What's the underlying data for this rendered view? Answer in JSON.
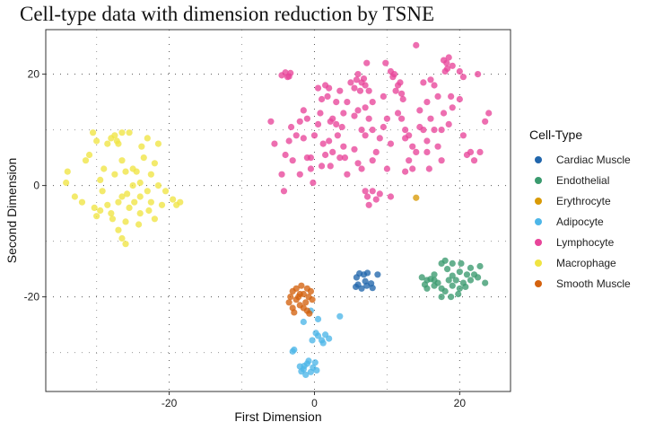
{
  "chart_data": {
    "type": "scatter",
    "title": "Cell-type data with dimension reduction by TSNE",
    "xlabel": "First Dimension",
    "ylabel": "Second Dimension",
    "xlim": [
      -37,
      27
    ],
    "ylim": [
      -37,
      28
    ],
    "xticks": [
      -20,
      0,
      20
    ],
    "yticks": [
      -20,
      0,
      20
    ],
    "grid": true,
    "legend_position": "right",
    "legend_title": "Cell-Type",
    "series": [
      {
        "name": "Cardiac Muscle",
        "color": "#2166ac",
        "points": [
          [
            5.8,
            -16.5
          ],
          [
            6.2,
            -15.8
          ],
          [
            6.8,
            -16.0
          ],
          [
            7.3,
            -15.7
          ],
          [
            8.7,
            -16.0
          ],
          [
            6.0,
            -17.8
          ],
          [
            6.5,
            -18.5
          ],
          [
            7.2,
            -18.0
          ],
          [
            7.8,
            -17.6
          ],
          [
            8.0,
            -18.4
          ],
          [
            7.0,
            -17.2
          ],
          [
            5.7,
            -18.2
          ]
        ]
      },
      {
        "name": "Endothelial",
        "color": "#3a9a6e",
        "points": [
          [
            14.8,
            -16.5
          ],
          [
            15.5,
            -17.0
          ],
          [
            16.0,
            -16.8
          ],
          [
            16.5,
            -16.0
          ],
          [
            17.0,
            -17.5
          ],
          [
            17.5,
            -14.0
          ],
          [
            18.0,
            -13.5
          ],
          [
            18.3,
            -15.0
          ],
          [
            19.0,
            -16.2
          ],
          [
            19.5,
            -17.0
          ],
          [
            20.0,
            -15.5
          ],
          [
            20.5,
            -17.5
          ],
          [
            21.0,
            -16.0
          ],
          [
            21.5,
            -17.0
          ],
          [
            22.0,
            -16.0
          ],
          [
            22.5,
            -16.5
          ],
          [
            23.5,
            -17.5
          ],
          [
            15.5,
            -18.5
          ],
          [
            16.5,
            -18.0
          ],
          [
            17.5,
            -18.5
          ],
          [
            18.0,
            -19.0
          ],
          [
            19.0,
            -18.0
          ],
          [
            20.0,
            -18.5
          ],
          [
            20.8,
            -18.2
          ],
          [
            19.8,
            -19.5
          ],
          [
            18.8,
            -20.0
          ],
          [
            17.5,
            -20.0
          ],
          [
            16.5,
            -17.0
          ],
          [
            19.0,
            -14.0
          ],
          [
            21.5,
            -14.8
          ],
          [
            22.8,
            -14.5
          ],
          [
            15.2,
            -17.8
          ],
          [
            20.2,
            -14.0
          ],
          [
            18.5,
            -17.0
          ]
        ]
      },
      {
        "name": "Erythrocyte",
        "color": "#d99a06",
        "points": [
          [
            14.0,
            -2.2
          ]
        ]
      },
      {
        "name": "Adipocyte",
        "color": "#4db6e8",
        "points": [
          [
            -0.5,
            -22.5
          ],
          [
            -1.5,
            -24.5
          ],
          [
            0.5,
            -24.0
          ],
          [
            3.5,
            -23.5
          ],
          [
            0.2,
            -26.5
          ],
          [
            0.5,
            -27.0
          ],
          [
            1.0,
            -27.8
          ],
          [
            1.5,
            -26.8
          ],
          [
            2.0,
            -27.5
          ],
          [
            1.2,
            -28.3
          ],
          [
            -0.3,
            -27.8
          ],
          [
            -3.0,
            -29.8
          ],
          [
            -2.8,
            -29.5
          ],
          [
            -2.0,
            -32.5
          ],
          [
            -1.5,
            -33.0
          ],
          [
            -1.0,
            -32.0
          ],
          [
            -0.5,
            -33.5
          ],
          [
            -1.2,
            -34.0
          ],
          [
            -0.2,
            -32.7
          ],
          [
            0.3,
            -33.2
          ],
          [
            -1.8,
            -33.4
          ],
          [
            -0.8,
            -31.5
          ],
          [
            0.1,
            -31.8
          ],
          [
            -1.4,
            -32.4
          ]
        ]
      },
      {
        "name": "Lymphocyte",
        "color": "#e8459a",
        "points": [
          [
            -4.5,
            19.8
          ],
          [
            -4.0,
            20.3
          ],
          [
            -3.7,
            19.5
          ],
          [
            -3.3,
            20.2
          ],
          [
            -3.5,
            19.6
          ],
          [
            -6.0,
            11.5
          ],
          [
            -5.5,
            7.5
          ],
          [
            -4.5,
            2.0
          ],
          [
            -4.2,
            -1.0
          ],
          [
            -4.0,
            5.5
          ],
          [
            -3.0,
            4.5
          ],
          [
            -3.5,
            8.0
          ],
          [
            -3.2,
            10.5
          ],
          [
            -2.5,
            9.0
          ],
          [
            -2.0,
            11.5
          ],
          [
            -1.5,
            8.5
          ],
          [
            -1.0,
            5.0
          ],
          [
            -1.5,
            13.5
          ],
          [
            -1.0,
            12.0
          ],
          [
            -0.5,
            3.0
          ],
          [
            -0.2,
            0.5
          ],
          [
            -0.5,
            5.0
          ],
          [
            0.0,
            9.0
          ],
          [
            0.5,
            11.0
          ],
          [
            0.8,
            13.0
          ],
          [
            0.5,
            17.5
          ],
          [
            1.0,
            15.5
          ],
          [
            1.5,
            18.0
          ],
          [
            1.8,
            16.0
          ],
          [
            2.0,
            17.5
          ],
          [
            2.2,
            11.5
          ],
          [
            2.5,
            12.0
          ],
          [
            3.0,
            11.0
          ],
          [
            3.2,
            9.0
          ],
          [
            3.5,
            17.0
          ],
          [
            2.0,
            8.0
          ],
          [
            2.5,
            6.0
          ],
          [
            2.2,
            3.5
          ],
          [
            1.5,
            5.5
          ],
          [
            1.2,
            7.5
          ],
          [
            3.0,
            15.0
          ],
          [
            3.8,
            10.5
          ],
          [
            4.0,
            7.0
          ],
          [
            4.2,
            5.0
          ],
          [
            4.5,
            2.0
          ],
          [
            4.5,
            15.0
          ],
          [
            5.0,
            18.5
          ],
          [
            5.5,
            17.5
          ],
          [
            5.8,
            19.0
          ],
          [
            6.0,
            20.0
          ],
          [
            6.3,
            17.0
          ],
          [
            6.5,
            18.5
          ],
          [
            6.8,
            19.2
          ],
          [
            7.0,
            18.0
          ],
          [
            7.2,
            22.0
          ],
          [
            7.5,
            17.0
          ],
          [
            7.0,
            14.0
          ],
          [
            6.5,
            10.0
          ],
          [
            7.0,
            9.0
          ],
          [
            7.5,
            12.0
          ],
          [
            5.5,
            6.5
          ],
          [
            6.0,
            4.0
          ],
          [
            6.5,
            3.0
          ],
          [
            7.0,
            -1.0
          ],
          [
            7.3,
            -2.0
          ],
          [
            7.5,
            -3.5
          ],
          [
            8.0,
            -1.0
          ],
          [
            8.5,
            -2.5
          ],
          [
            9.0,
            -1.5
          ],
          [
            8.5,
            6.0
          ],
          [
            9.0,
            8.5
          ],
          [
            8.0,
            10.0
          ],
          [
            9.5,
            10.5
          ],
          [
            10.0,
            12.0
          ],
          [
            10.0,
            3.0
          ],
          [
            10.5,
            -2.0
          ],
          [
            9.8,
            22.0
          ],
          [
            10.5,
            20.5
          ],
          [
            10.8,
            19.5
          ],
          [
            11.0,
            20.0
          ],
          [
            11.5,
            18.0
          ],
          [
            11.2,
            17.0
          ],
          [
            11.8,
            18.5
          ],
          [
            12.0,
            16.5
          ],
          [
            12.2,
            15.5
          ],
          [
            11.5,
            13.0
          ],
          [
            12.0,
            12.0
          ],
          [
            12.5,
            10.0
          ],
          [
            13.0,
            9.0
          ],
          [
            12.5,
            8.5
          ],
          [
            13.5,
            7.0
          ],
          [
            13.0,
            4.5
          ],
          [
            13.5,
            3.0
          ],
          [
            14.0,
            6.0
          ],
          [
            14.0,
            25.2
          ],
          [
            14.5,
            13.5
          ],
          [
            15.0,
            10.0
          ],
          [
            15.5,
            8.0
          ],
          [
            15.5,
            6.0
          ],
          [
            15.8,
            3.0
          ],
          [
            15.5,
            15.0
          ],
          [
            16.0,
            19.0
          ],
          [
            16.5,
            18.0
          ],
          [
            16.0,
            12.0
          ],
          [
            17.0,
            16.0
          ],
          [
            17.0,
            7.0
          ],
          [
            17.5,
            10.0
          ],
          [
            17.8,
            13.0
          ],
          [
            17.5,
            4.5
          ],
          [
            18.0,
            20.5
          ],
          [
            18.3,
            21.0
          ],
          [
            17.8,
            22.5
          ],
          [
            18.2,
            22.0
          ],
          [
            18.5,
            23.0
          ],
          [
            19.0,
            21.5
          ],
          [
            18.8,
            16.0
          ],
          [
            18.5,
            11.0
          ],
          [
            19.0,
            14.0
          ],
          [
            20.0,
            20.5
          ],
          [
            20.5,
            19.5
          ],
          [
            20.5,
            9.0
          ],
          [
            20.0,
            15.5
          ],
          [
            21.0,
            5.5
          ],
          [
            21.5,
            6.0
          ],
          [
            22.0,
            4.5
          ],
          [
            22.5,
            20.0
          ],
          [
            22.8,
            6.0
          ],
          [
            23.5,
            11.5
          ],
          [
            24.0,
            13.0
          ],
          [
            8.0,
            15.0
          ],
          [
            5.5,
            12.5
          ],
          [
            3.5,
            5.0
          ],
          [
            9.5,
            16.0
          ],
          [
            10.5,
            7.5
          ],
          [
            15.0,
            18.5
          ],
          [
            16.5,
            10.0
          ],
          [
            14.5,
            10.5
          ],
          [
            12.5,
            2.5
          ],
          [
            1.0,
            3.5
          ],
          [
            -2.0,
            2.0
          ],
          [
            4.0,
            13.0
          ],
          [
            8.0,
            4.5
          ],
          [
            6.0,
            13.5
          ]
        ]
      },
      {
        "name": "Macrophage",
        "color": "#f0e442",
        "points": [
          [
            -34.0,
            2.5
          ],
          [
            -34.2,
            0.5
          ],
          [
            -33.0,
            -2.0
          ],
          [
            -32.0,
            -3.0
          ],
          [
            -31.5,
            4.5
          ],
          [
            -31.0,
            5.5
          ],
          [
            -30.5,
            9.5
          ],
          [
            -30.0,
            8.0
          ],
          [
            -30.3,
            -4.0
          ],
          [
            -30.0,
            -5.5
          ],
          [
            -29.5,
            -4.5
          ],
          [
            -29.5,
            1.0
          ],
          [
            -29.0,
            3.0
          ],
          [
            -29.2,
            -1.0
          ],
          [
            -28.5,
            7.5
          ],
          [
            -28.0,
            8.5
          ],
          [
            -27.5,
            9.0
          ],
          [
            -27.2,
            8.0
          ],
          [
            -27.0,
            7.5
          ],
          [
            -26.5,
            9.5
          ],
          [
            -26.5,
            -2.0
          ],
          [
            -27.0,
            -3.0
          ],
          [
            -26.0,
            2.5
          ],
          [
            -26.5,
            4.5
          ],
          [
            -27.5,
            2.0
          ],
          [
            -28.0,
            -5.0
          ],
          [
            -27.8,
            -6.0
          ],
          [
            -27.0,
            -8.0
          ],
          [
            -26.5,
            -9.5
          ],
          [
            -26.0,
            -6.5
          ],
          [
            -25.5,
            -4.0
          ],
          [
            -25.8,
            -1.5
          ],
          [
            -25.0,
            0.0
          ],
          [
            -25.0,
            3.0
          ],
          [
            -24.8,
            -3.0
          ],
          [
            -24.5,
            2.5
          ],
          [
            -24.0,
            -2.0
          ],
          [
            -24.0,
            -5.0
          ],
          [
            -24.2,
            -7.0
          ],
          [
            -23.8,
            7.0
          ],
          [
            -23.5,
            5.0
          ],
          [
            -23.0,
            8.5
          ],
          [
            -23.0,
            -1.0
          ],
          [
            -22.8,
            -4.5
          ],
          [
            -22.5,
            -3.0
          ],
          [
            -22.5,
            2.0
          ],
          [
            -22.0,
            4.0
          ],
          [
            -22.0,
            -6.0
          ],
          [
            -21.5,
            0.0
          ],
          [
            -21.5,
            7.5
          ],
          [
            -21.0,
            -3.5
          ],
          [
            -20.5,
            -1.0
          ],
          [
            -19.5,
            -2.5
          ],
          [
            -19.0,
            -3.5
          ],
          [
            -18.5,
            -3.0
          ],
          [
            -25.5,
            9.5
          ],
          [
            -28.5,
            -3.5
          ],
          [
            -24.0,
            0.5
          ],
          [
            -26.0,
            -10.5
          ]
        ]
      },
      {
        "name": "Smooth Muscle",
        "color": "#d4620e",
        "points": [
          [
            -3.5,
            -21.0
          ],
          [
            -3.0,
            -19.0
          ],
          [
            -2.5,
            -20.5
          ],
          [
            -2.0,
            -19.5
          ],
          [
            -1.8,
            -18.0
          ],
          [
            -1.5,
            -19.5
          ],
          [
            -1.0,
            -18.5
          ],
          [
            -0.8,
            -20.0
          ],
          [
            -0.5,
            -19.0
          ],
          [
            -2.0,
            -21.5
          ],
          [
            -1.5,
            -22.0
          ],
          [
            -1.0,
            -22.5
          ],
          [
            -3.0,
            -22.0
          ],
          [
            -2.5,
            -18.5
          ],
          [
            -0.3,
            -20.5
          ],
          [
            -2.8,
            -22.8
          ],
          [
            -1.2,
            -21.0
          ],
          [
            -0.7,
            -23.0
          ],
          [
            -3.3,
            -20.0
          ],
          [
            -2.2,
            -20.0
          ]
        ]
      }
    ]
  }
}
